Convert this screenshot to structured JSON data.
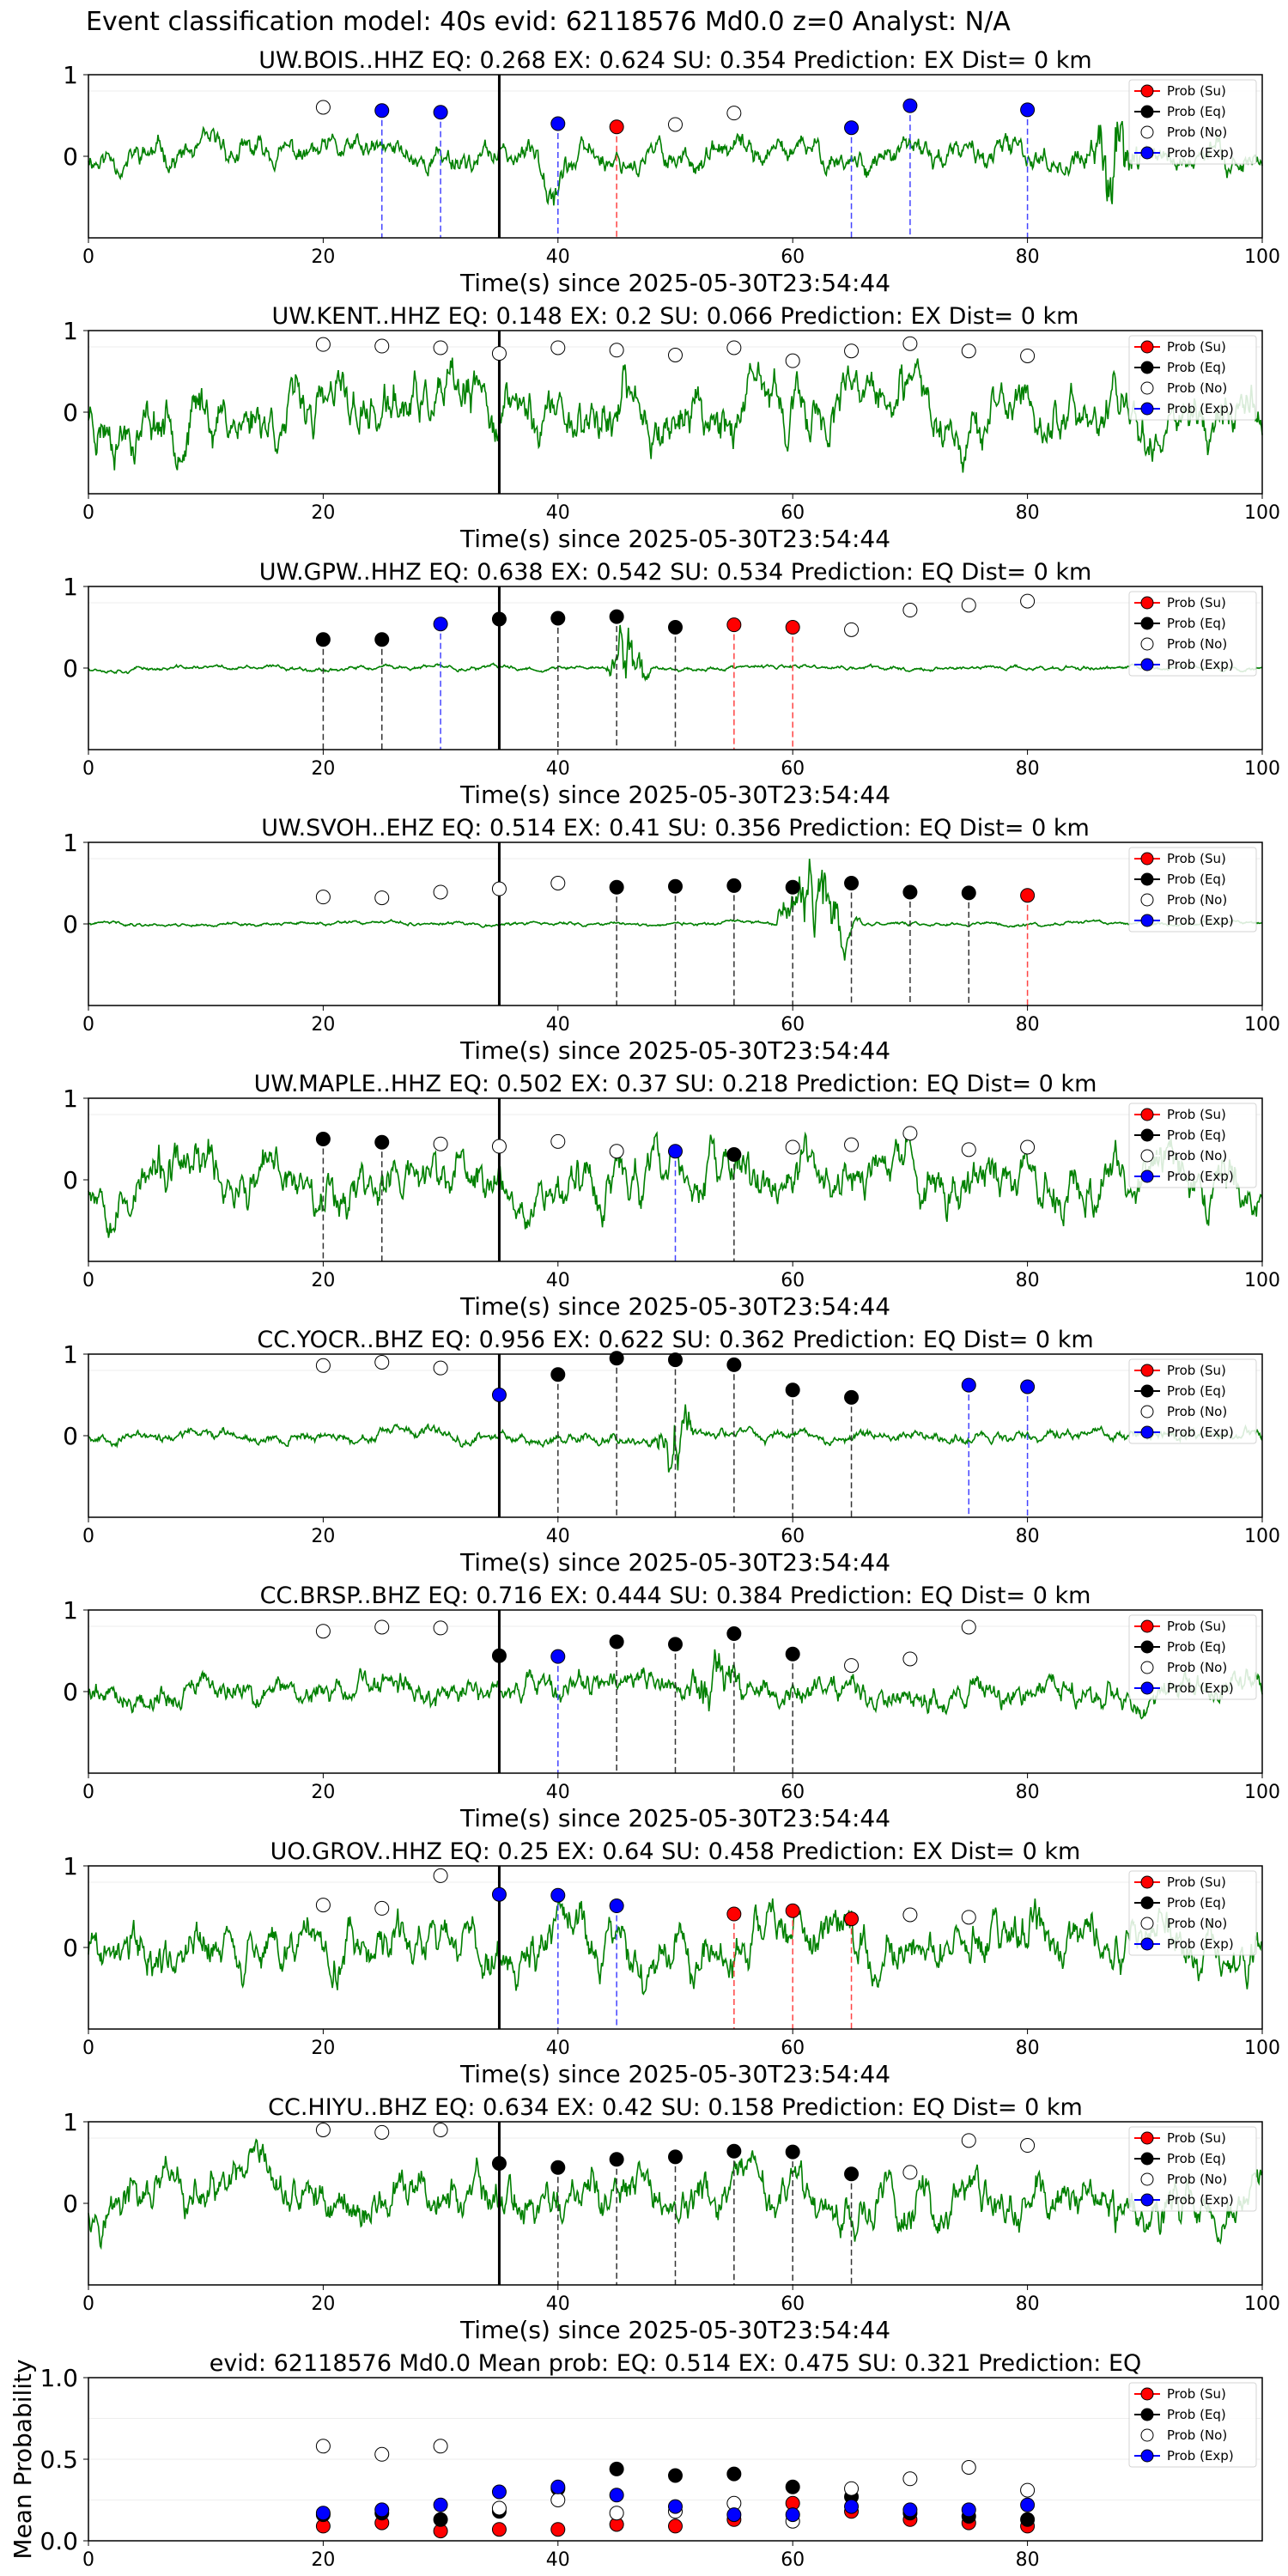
{
  "figure_title": "Event classification model: 40s evid: 62118576 Md0.0 z=0 Analyst: N/A",
  "xlabel": "Time(s) since 2025-05-30T23:54:44",
  "legend": [
    "Prob (Su)",
    "Prob (Eq)",
    "Prob (No)",
    "Prob (Exp)"
  ],
  "colors": {
    "su": "#ff0000",
    "eq": "#000000",
    "no": "#ffffff",
    "exp": "#0000ff",
    "wave": "#008000",
    "vline_eq": "#333333",
    "vline_exp": "#4444ff",
    "vline_su": "#ff4444"
  },
  "chart_data": [
    {
      "type": "line",
      "title": "UW.BOIS..HHZ   EQ: 0.268  EX: 0.624  SU: 0.354   Prediction: EX    Dist= 0 km",
      "xlim": [
        0,
        100
      ],
      "ylim": [
        -1,
        1
      ],
      "yticks": [
        0,
        1
      ],
      "xticks": [
        0,
        20,
        40,
        60,
        80,
        100
      ],
      "onset": 35,
      "wave_seed": 11,
      "wave_amp": 0.3,
      "wave_bursts": [
        [
          37,
          42,
          0.5
        ],
        [
          85,
          90,
          1.4
        ]
      ],
      "points": [
        {
          "x": 20,
          "y": 0.6,
          "c": "no"
        },
        {
          "x": 25,
          "y": 0.56,
          "c": "exp"
        },
        {
          "x": 30,
          "y": 0.54,
          "c": "exp"
        },
        {
          "x": 40,
          "y": 0.4,
          "c": "exp"
        },
        {
          "x": 45,
          "y": 0.36,
          "c": "su"
        },
        {
          "x": 50,
          "y": 0.39,
          "c": "no"
        },
        {
          "x": 55,
          "y": 0.53,
          "c": "no"
        },
        {
          "x": 65,
          "y": 0.35,
          "c": "exp"
        },
        {
          "x": 70,
          "y": 0.62,
          "c": "exp"
        },
        {
          "x": 80,
          "y": 0.57,
          "c": "exp"
        }
      ]
    },
    {
      "type": "line",
      "title": "UW.KENT..HHZ   EQ: 0.148  EX: 0.2  SU: 0.066   Prediction: EX    Dist= 0 km",
      "xlim": [
        0,
        100
      ],
      "ylim": [
        -1,
        1
      ],
      "yticks": [
        0,
        1
      ],
      "xticks": [
        0,
        20,
        40,
        60,
        80,
        100
      ],
      "onset": 35,
      "wave_seed": 23,
      "wave_amp": 0.6,
      "wave_bursts": [],
      "points": [
        {
          "x": 20,
          "y": 0.83,
          "c": "no"
        },
        {
          "x": 25,
          "y": 0.81,
          "c": "no"
        },
        {
          "x": 30,
          "y": 0.79,
          "c": "no"
        },
        {
          "x": 35,
          "y": 0.72,
          "c": "no"
        },
        {
          "x": 40,
          "y": 0.79,
          "c": "no"
        },
        {
          "x": 45,
          "y": 0.76,
          "c": "no"
        },
        {
          "x": 50,
          "y": 0.7,
          "c": "no"
        },
        {
          "x": 55,
          "y": 0.79,
          "c": "no"
        },
        {
          "x": 60,
          "y": 0.63,
          "c": "no"
        },
        {
          "x": 65,
          "y": 0.75,
          "c": "no"
        },
        {
          "x": 70,
          "y": 0.84,
          "c": "no"
        },
        {
          "x": 75,
          "y": 0.75,
          "c": "no"
        },
        {
          "x": 80,
          "y": 0.69,
          "c": "no"
        }
      ]
    },
    {
      "type": "line",
      "title": "UW.GPW..HHZ   EQ: 0.638  EX: 0.542  SU: 0.534   Prediction: EQ    Dist= 0 km",
      "xlim": [
        0,
        100
      ],
      "ylim": [
        -1,
        1
      ],
      "yticks": [
        0,
        1
      ],
      "xticks": [
        0,
        20,
        40,
        60,
        80,
        100
      ],
      "onset": 35,
      "wave_seed": 37,
      "wave_amp": 0.05,
      "wave_bursts": [
        [
          44,
          48,
          1.0
        ]
      ],
      "points": [
        {
          "x": 20,
          "y": 0.35,
          "c": "eq"
        },
        {
          "x": 25,
          "y": 0.35,
          "c": "eq"
        },
        {
          "x": 30,
          "y": 0.54,
          "c": "exp"
        },
        {
          "x": 35,
          "y": 0.6,
          "c": "eq"
        },
        {
          "x": 40,
          "y": 0.61,
          "c": "eq"
        },
        {
          "x": 45,
          "y": 0.63,
          "c": "eq"
        },
        {
          "x": 50,
          "y": 0.5,
          "c": "eq"
        },
        {
          "x": 55,
          "y": 0.53,
          "c": "su"
        },
        {
          "x": 60,
          "y": 0.5,
          "c": "su"
        },
        {
          "x": 65,
          "y": 0.47,
          "c": "no"
        },
        {
          "x": 70,
          "y": 0.71,
          "c": "no"
        },
        {
          "x": 75,
          "y": 0.77,
          "c": "no"
        },
        {
          "x": 80,
          "y": 0.82,
          "c": "no"
        }
      ]
    },
    {
      "type": "line",
      "title": "UW.SVOH..EHZ   EQ: 0.514  EX: 0.41  SU: 0.356   Prediction: EQ    Dist= 0 km",
      "xlim": [
        0,
        100
      ],
      "ylim": [
        -1,
        1
      ],
      "yticks": [
        0,
        1
      ],
      "xticks": [
        0,
        20,
        40,
        60,
        80,
        100
      ],
      "onset": 35,
      "wave_seed": 41,
      "wave_amp": 0.04,
      "wave_bursts": [
        [
          58,
          66,
          0.9
        ]
      ],
      "points": [
        {
          "x": 20,
          "y": 0.33,
          "c": "no"
        },
        {
          "x": 25,
          "y": 0.32,
          "c": "no"
        },
        {
          "x": 30,
          "y": 0.39,
          "c": "no"
        },
        {
          "x": 35,
          "y": 0.43,
          "c": "no"
        },
        {
          "x": 40,
          "y": 0.5,
          "c": "no"
        },
        {
          "x": 45,
          "y": 0.45,
          "c": "eq"
        },
        {
          "x": 50,
          "y": 0.46,
          "c": "eq"
        },
        {
          "x": 55,
          "y": 0.47,
          "c": "eq"
        },
        {
          "x": 60,
          "y": 0.45,
          "c": "eq"
        },
        {
          "x": 65,
          "y": 0.5,
          "c": "eq"
        },
        {
          "x": 70,
          "y": 0.39,
          "c": "eq"
        },
        {
          "x": 75,
          "y": 0.38,
          "c": "eq"
        },
        {
          "x": 80,
          "y": 0.35,
          "c": "su"
        }
      ]
    },
    {
      "type": "line",
      "title": "UW.MAPLE..HHZ   EQ: 0.502  EX: 0.37  SU: 0.218   Prediction: EQ    Dist= 0 km",
      "xlim": [
        0,
        100
      ],
      "ylim": [
        -1,
        1
      ],
      "yticks": [
        0,
        1
      ],
      "xticks": [
        0,
        20,
        40,
        60,
        80,
        100
      ],
      "onset": 35,
      "wave_seed": 53,
      "wave_amp": 0.55,
      "wave_bursts": [],
      "points": [
        {
          "x": 20,
          "y": 0.5,
          "c": "eq"
        },
        {
          "x": 25,
          "y": 0.46,
          "c": "eq"
        },
        {
          "x": 30,
          "y": 0.44,
          "c": "no"
        },
        {
          "x": 35,
          "y": 0.41,
          "c": "no"
        },
        {
          "x": 40,
          "y": 0.47,
          "c": "no"
        },
        {
          "x": 45,
          "y": 0.35,
          "c": "no"
        },
        {
          "x": 50,
          "y": 0.35,
          "c": "exp"
        },
        {
          "x": 55,
          "y": 0.31,
          "c": "eq"
        },
        {
          "x": 60,
          "y": 0.4,
          "c": "no"
        },
        {
          "x": 65,
          "y": 0.43,
          "c": "no"
        },
        {
          "x": 70,
          "y": 0.57,
          "c": "no"
        },
        {
          "x": 75,
          "y": 0.37,
          "c": "no"
        },
        {
          "x": 80,
          "y": 0.4,
          "c": "no"
        }
      ]
    },
    {
      "type": "line",
      "title": "CC.YOCR..BHZ   EQ: 0.956  EX: 0.622  SU: 0.362   Prediction: EQ    Dist= 0 km",
      "xlim": [
        0,
        100
      ],
      "ylim": [
        -1,
        1
      ],
      "yticks": [
        0,
        1
      ],
      "xticks": [
        0,
        20,
        40,
        60,
        80,
        100
      ],
      "onset": 35,
      "wave_seed": 67,
      "wave_amp": 0.12,
      "wave_bursts": [
        [
          48,
          52,
          0.9
        ]
      ],
      "points": [
        {
          "x": 20,
          "y": 0.86,
          "c": "no"
        },
        {
          "x": 25,
          "y": 0.9,
          "c": "no"
        },
        {
          "x": 30,
          "y": 0.83,
          "c": "no"
        },
        {
          "x": 35,
          "y": 0.5,
          "c": "exp"
        },
        {
          "x": 40,
          "y": 0.75,
          "c": "eq"
        },
        {
          "x": 45,
          "y": 0.95,
          "c": "eq"
        },
        {
          "x": 50,
          "y": 0.93,
          "c": "eq"
        },
        {
          "x": 55,
          "y": 0.87,
          "c": "eq"
        },
        {
          "x": 60,
          "y": 0.56,
          "c": "eq"
        },
        {
          "x": 65,
          "y": 0.47,
          "c": "eq"
        },
        {
          "x": 75,
          "y": 0.62,
          "c": "exp"
        },
        {
          "x": 80,
          "y": 0.6,
          "c": "exp"
        }
      ]
    },
    {
      "type": "line",
      "title": "CC.BRSP..BHZ   EQ: 0.716  EX: 0.444  SU: 0.384   Prediction: EQ    Dist= 0 km",
      "xlim": [
        0,
        100
      ],
      "ylim": [
        -1,
        1
      ],
      "yticks": [
        0,
        1
      ],
      "xticks": [
        0,
        20,
        40,
        60,
        80,
        100
      ],
      "onset": 35,
      "wave_seed": 79,
      "wave_amp": 0.3,
      "wave_bursts": [
        [
          50,
          57,
          0.7
        ]
      ],
      "points": [
        {
          "x": 20,
          "y": 0.74,
          "c": "no"
        },
        {
          "x": 25,
          "y": 0.79,
          "c": "no"
        },
        {
          "x": 30,
          "y": 0.78,
          "c": "no"
        },
        {
          "x": 35,
          "y": 0.44,
          "c": "eq"
        },
        {
          "x": 40,
          "y": 0.43,
          "c": "exp"
        },
        {
          "x": 45,
          "y": 0.61,
          "c": "eq"
        },
        {
          "x": 50,
          "y": 0.58,
          "c": "eq"
        },
        {
          "x": 55,
          "y": 0.71,
          "c": "eq"
        },
        {
          "x": 60,
          "y": 0.46,
          "c": "eq"
        },
        {
          "x": 65,
          "y": 0.32,
          "c": "no"
        },
        {
          "x": 70,
          "y": 0.4,
          "c": "no"
        },
        {
          "x": 75,
          "y": 0.79,
          "c": "no"
        }
      ]
    },
    {
      "type": "line",
      "title": "UO.GROV..HHZ   EQ: 0.25  EX: 0.64  SU: 0.458   Prediction: EX    Dist= 0 km",
      "xlim": [
        0,
        100
      ],
      "ylim": [
        -1,
        1
      ],
      "yticks": [
        0,
        1
      ],
      "xticks": [
        0,
        20,
        40,
        60,
        80,
        100
      ],
      "onset": 35,
      "wave_seed": 89,
      "wave_amp": 0.55,
      "wave_bursts": [],
      "points": [
        {
          "x": 20,
          "y": 0.52,
          "c": "no"
        },
        {
          "x": 25,
          "y": 0.48,
          "c": "no"
        },
        {
          "x": 30,
          "y": 0.88,
          "c": "no"
        },
        {
          "x": 35,
          "y": 0.65,
          "c": "exp"
        },
        {
          "x": 40,
          "y": 0.64,
          "c": "exp"
        },
        {
          "x": 45,
          "y": 0.51,
          "c": "exp"
        },
        {
          "x": 55,
          "y": 0.41,
          "c": "su"
        },
        {
          "x": 60,
          "y": 0.45,
          "c": "su"
        },
        {
          "x": 65,
          "y": 0.35,
          "c": "su"
        },
        {
          "x": 70,
          "y": 0.4,
          "c": "no"
        },
        {
          "x": 75,
          "y": 0.37,
          "c": "no"
        }
      ]
    },
    {
      "type": "line",
      "title": "CC.HIYU..BHZ   EQ: 0.634  EX: 0.42  SU: 0.158   Prediction: EQ    Dist= 0 km",
      "xlim": [
        0,
        100
      ],
      "ylim": [
        -1,
        1
      ],
      "yticks": [
        0,
        1
      ],
      "xticks": [
        0,
        20,
        40,
        60,
        80,
        100
      ],
      "onset": 35,
      "wave_seed": 97,
      "wave_amp": 0.5,
      "wave_bursts": [],
      "points": [
        {
          "x": 20,
          "y": 0.9,
          "c": "no"
        },
        {
          "x": 25,
          "y": 0.87,
          "c": "no"
        },
        {
          "x": 30,
          "y": 0.9,
          "c": "no"
        },
        {
          "x": 35,
          "y": 0.49,
          "c": "eq"
        },
        {
          "x": 40,
          "y": 0.44,
          "c": "eq"
        },
        {
          "x": 45,
          "y": 0.54,
          "c": "eq"
        },
        {
          "x": 50,
          "y": 0.57,
          "c": "eq"
        },
        {
          "x": 55,
          "y": 0.64,
          "c": "eq"
        },
        {
          "x": 60,
          "y": 0.63,
          "c": "eq"
        },
        {
          "x": 65,
          "y": 0.36,
          "c": "eq"
        },
        {
          "x": 70,
          "y": 0.38,
          "c": "no"
        },
        {
          "x": 75,
          "y": 0.77,
          "c": "no"
        },
        {
          "x": 80,
          "y": 0.71,
          "c": "no"
        }
      ]
    },
    {
      "type": "scatter",
      "title": "evid: 62118576  Md0.0   Mean prob:    EQ: 0.514  EX: 0.475  SU: 0.321   Prediction: EQ",
      "ylabel": "Mean Probability",
      "xlim": [
        0,
        100
      ],
      "ylim": [
        0,
        1
      ],
      "yticks": [
        0.0,
        0.5,
        1.0
      ],
      "ytick_labels": [
        "0.0",
        "0.5",
        "1.0"
      ],
      "xticks": [
        0,
        20,
        40,
        60,
        80
      ],
      "series": [
        {
          "name": "Prob (Su)",
          "color_key": "su",
          "x": [
            20,
            25,
            30,
            35,
            40,
            45,
            50,
            55,
            60,
            65,
            70,
            75,
            80
          ],
          "y": [
            0.09,
            0.11,
            0.06,
            0.07,
            0.07,
            0.1,
            0.09,
            0.13,
            0.23,
            0.18,
            0.13,
            0.11,
            0.09
          ]
        },
        {
          "name": "Prob (Eq)",
          "color_key": "eq",
          "x": [
            20,
            25,
            30,
            35,
            40,
            45,
            50,
            55,
            60,
            65,
            70,
            75,
            80
          ],
          "y": [
            0.16,
            0.17,
            0.13,
            0.18,
            0.32,
            0.44,
            0.4,
            0.41,
            0.33,
            0.27,
            0.17,
            0.15,
            0.13
          ]
        },
        {
          "name": "Prob (No)",
          "color_key": "no",
          "x": [
            20,
            25,
            30,
            35,
            40,
            45,
            50,
            55,
            60,
            65,
            70,
            75,
            80
          ],
          "y": [
            0.58,
            0.53,
            0.58,
            0.2,
            0.25,
            0.17,
            0.18,
            0.23,
            0.12,
            0.32,
            0.38,
            0.45,
            0.31
          ]
        },
        {
          "name": "Prob (Exp)",
          "color_key": "exp",
          "x": [
            20,
            25,
            30,
            35,
            40,
            45,
            50,
            55,
            60,
            65,
            70,
            75,
            80
          ],
          "y": [
            0.17,
            0.19,
            0.22,
            0.3,
            0.33,
            0.28,
            0.21,
            0.16,
            0.16,
            0.21,
            0.19,
            0.19,
            0.22
          ]
        }
      ]
    }
  ]
}
